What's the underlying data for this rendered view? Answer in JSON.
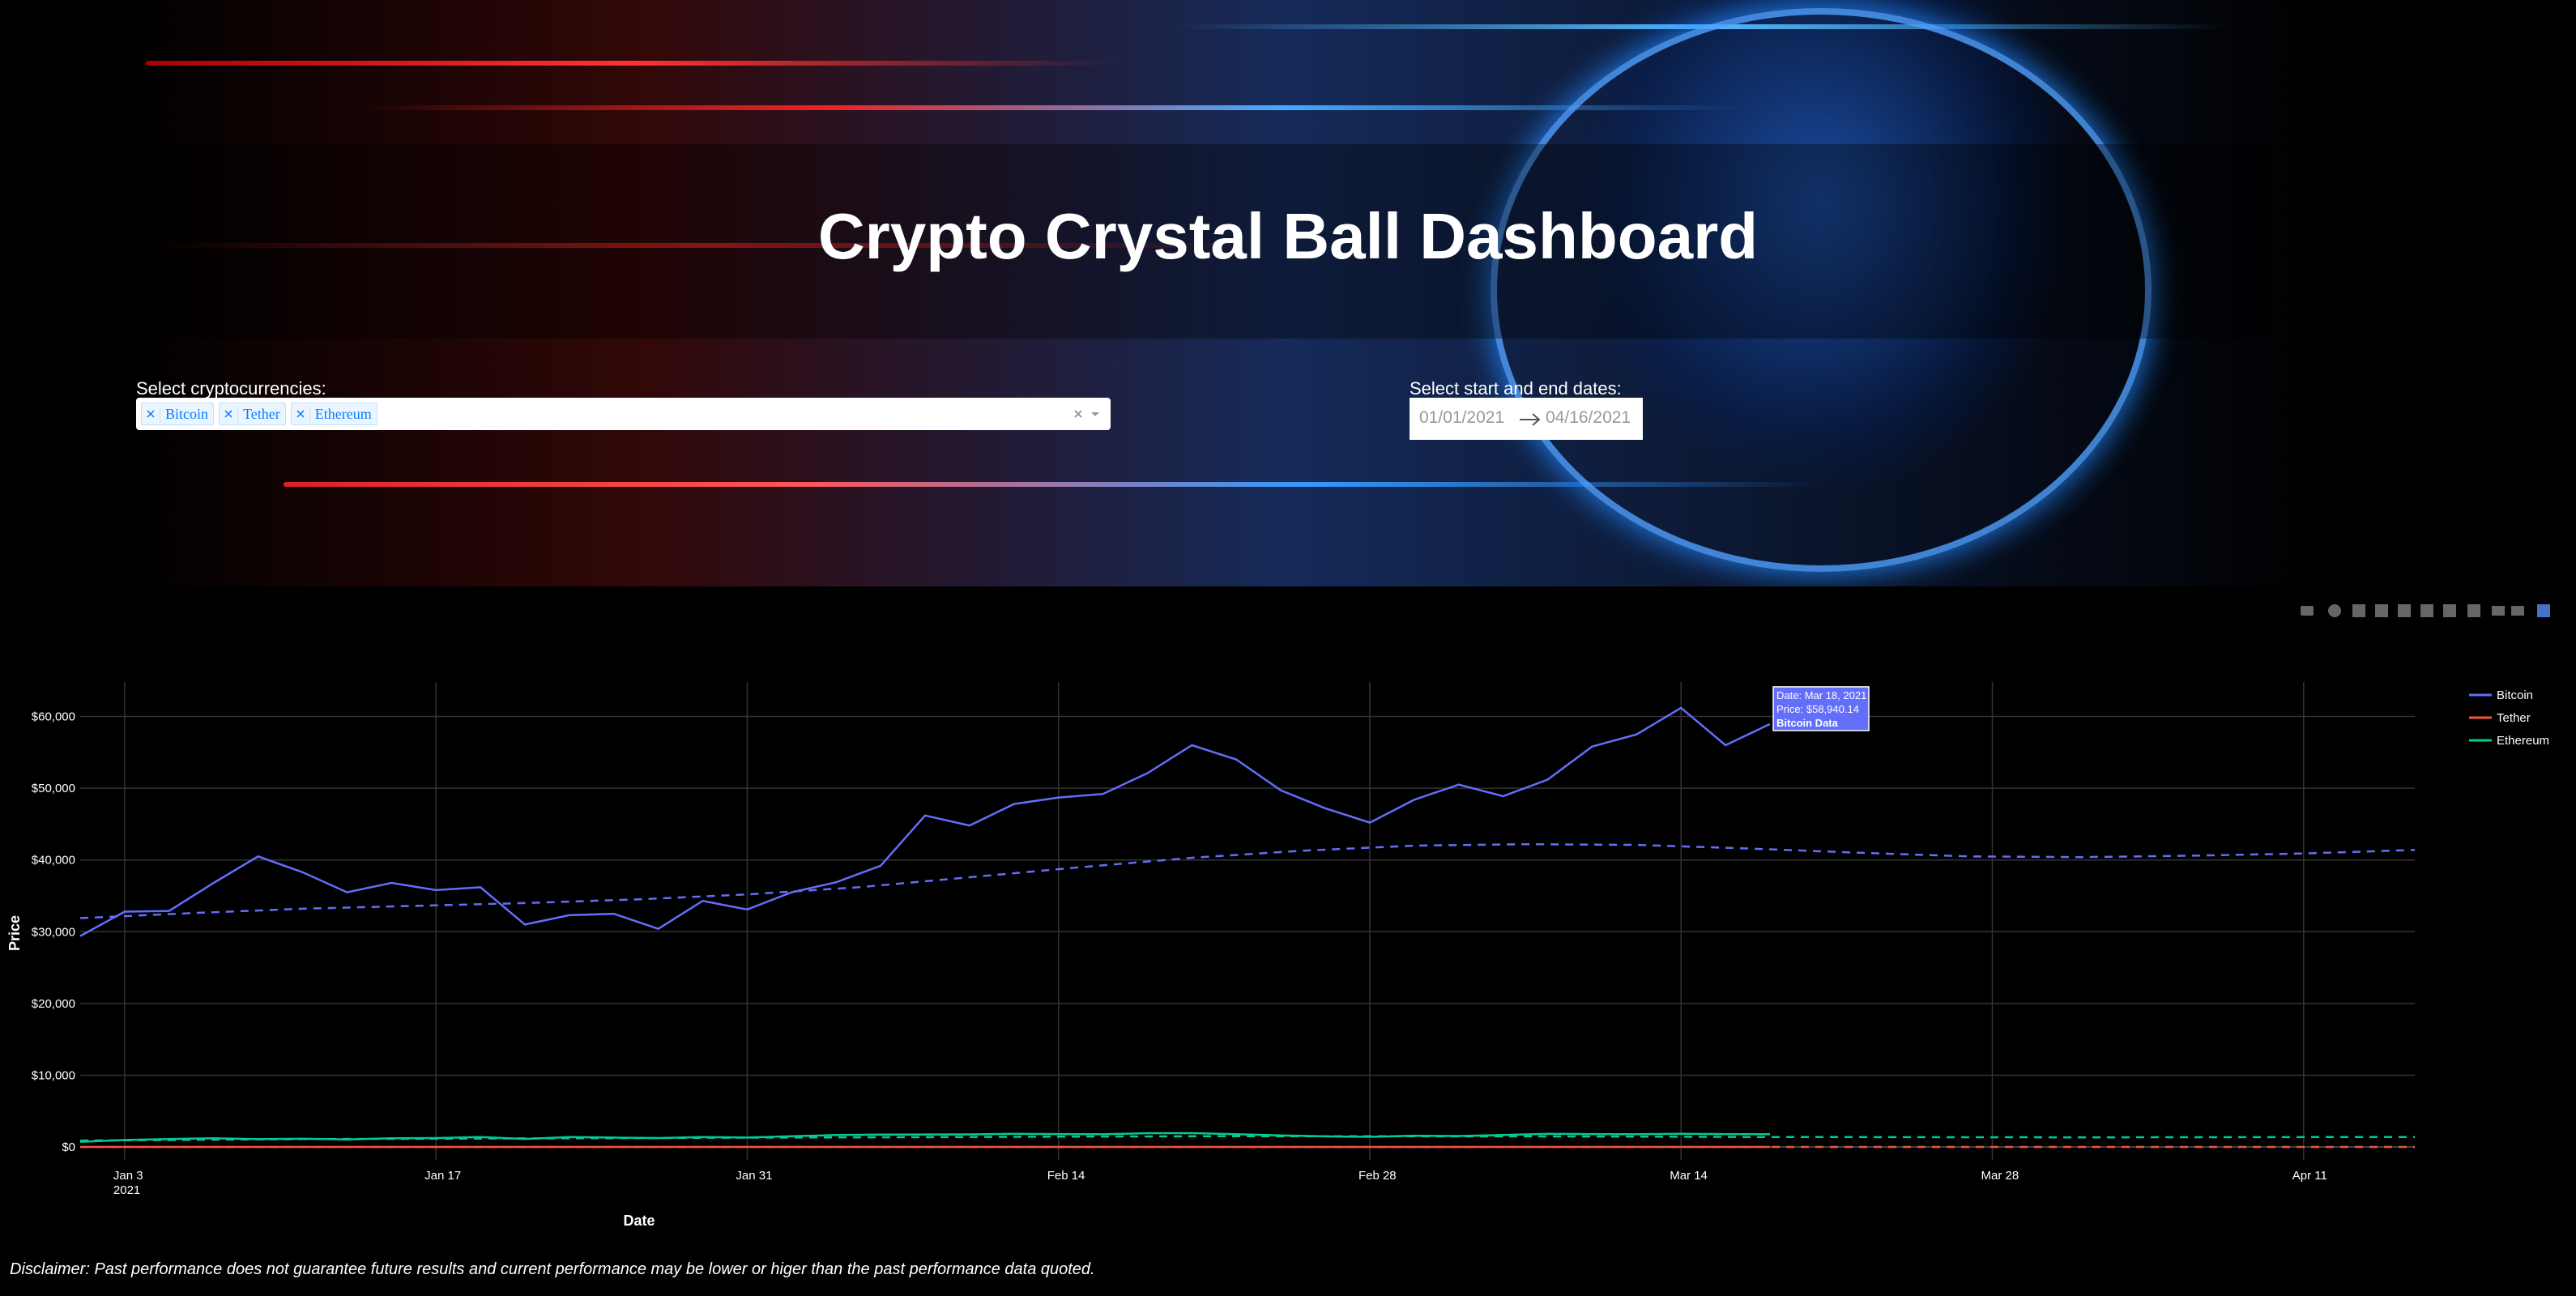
{
  "header": {
    "title": "Crypto Crystal Ball Dashboard"
  },
  "controls": {
    "crypto_label": "Select cryptocurrencies:",
    "selected": [
      "Bitcoin",
      "Tether",
      "Ethereum"
    ],
    "date_label": "Select start and end dates:",
    "start_date": "01/01/2021",
    "end_date": "04/16/2021"
  },
  "chart_data": {
    "type": "line",
    "x_label": "Date",
    "y_label": "Price",
    "grid": true,
    "legend": "right",
    "xlim": [
      "2021-01-01",
      "2021-04-16"
    ],
    "xticks": [
      {
        "value": "2021-01-03",
        "label": "Jan 3",
        "sublabel": "2021"
      },
      {
        "value": "2021-01-17",
        "label": "Jan 17"
      },
      {
        "value": "2021-01-31",
        "label": "Jan 31"
      },
      {
        "value": "2021-02-14",
        "label": "Feb 14"
      },
      {
        "value": "2021-02-28",
        "label": "Feb 28"
      },
      {
        "value": "2021-03-14",
        "label": "Mar 14"
      },
      {
        "value": "2021-03-28",
        "label": "Mar 28"
      },
      {
        "value": "2021-04-11",
        "label": "Apr 11"
      }
    ],
    "ylim": [
      -1800,
      64800
    ],
    "yticks": [
      {
        "value": 0,
        "label": "$0"
      },
      {
        "value": 10000,
        "label": "$10,000"
      },
      {
        "value": 20000,
        "label": "$20,000"
      },
      {
        "value": 30000,
        "label": "$30,000"
      },
      {
        "value": 40000,
        "label": "$40,000"
      },
      {
        "value": 50000,
        "label": "$50,000"
      },
      {
        "value": 60000,
        "label": "$60,000"
      }
    ],
    "x": [
      "2021-01-01",
      "2021-01-03",
      "2021-01-05",
      "2021-01-07",
      "2021-01-09",
      "2021-01-11",
      "2021-01-13",
      "2021-01-15",
      "2021-01-17",
      "2021-01-19",
      "2021-01-21",
      "2021-01-23",
      "2021-01-25",
      "2021-01-27",
      "2021-01-29",
      "2021-01-31",
      "2021-02-02",
      "2021-02-04",
      "2021-02-06",
      "2021-02-08",
      "2021-02-10",
      "2021-02-12",
      "2021-02-14",
      "2021-02-16",
      "2021-02-18",
      "2021-02-20",
      "2021-02-22",
      "2021-02-24",
      "2021-02-26",
      "2021-02-28",
      "2021-03-02",
      "2021-03-04",
      "2021-03-06",
      "2021-03-08",
      "2021-03-10",
      "2021-03-12",
      "2021-03-14",
      "2021-03-16",
      "2021-03-18"
    ],
    "forecast_x": [
      "2021-01-01",
      "2021-01-06",
      "2021-01-11",
      "2021-01-16",
      "2021-01-21",
      "2021-01-26",
      "2021-01-31",
      "2021-02-05",
      "2021-02-10",
      "2021-02-15",
      "2021-02-20",
      "2021-02-25",
      "2021-03-02",
      "2021-03-07",
      "2021-03-12",
      "2021-03-17",
      "2021-03-22",
      "2021-03-27",
      "2021-04-01",
      "2021-04-06",
      "2021-04-11",
      "2021-04-16"
    ],
    "series": [
      {
        "name": "Bitcoin",
        "color": "#636efa",
        "values": [
          29400,
          32800,
          32900,
          36800,
          40500,
          38300,
          35500,
          36800,
          35800,
          36200,
          31000,
          32300,
          32500,
          30400,
          34300,
          33100,
          35500,
          36900,
          39200,
          46200,
          44800,
          47800,
          48700,
          49200,
          52100,
          56000,
          54000,
          49700,
          47200,
          45200,
          48400,
          50500,
          48900,
          51200,
          55800,
          57500,
          61200,
          56000,
          58940.14
        ],
        "forecast": [
          31900,
          32600,
          33200,
          33600,
          34000,
          34500,
          35200,
          36200,
          37600,
          39000,
          40300,
          41300,
          42000,
          42200,
          42100,
          41600,
          41000,
          40500,
          40400,
          40600,
          40900,
          41400
        ]
      },
      {
        "name": "Tether",
        "color": "#ef553b",
        "values": [
          1,
          1,
          1,
          1,
          1,
          1,
          1,
          1,
          1,
          1,
          1,
          1,
          1,
          1,
          1,
          1,
          1,
          1,
          1,
          1,
          1,
          1,
          1,
          1,
          1,
          1,
          1,
          1,
          1,
          1,
          1,
          1,
          1,
          1,
          1,
          1,
          1,
          1,
          1
        ],
        "forecast": [
          1,
          1,
          1,
          1,
          1,
          1,
          1,
          1,
          1,
          1,
          1,
          1,
          1,
          1,
          1,
          1,
          1,
          1,
          1,
          1,
          1,
          1
        ]
      },
      {
        "name": "Ethereum",
        "color": "#00cc96",
        "values": [
          730,
          980,
          1100,
          1220,
          1090,
          1150,
          1050,
          1230,
          1250,
          1380,
          1120,
          1390,
          1320,
          1250,
          1380,
          1310,
          1500,
          1660,
          1720,
          1740,
          1760,
          1840,
          1800,
          1780,
          1920,
          1940,
          1780,
          1620,
          1480,
          1420,
          1570,
          1530,
          1670,
          1830,
          1800,
          1790,
          1850,
          1800,
          1790
        ],
        "forecast": [
          900,
          1000,
          1100,
          1150,
          1200,
          1250,
          1300,
          1350,
          1400,
          1450,
          1500,
          1500,
          1500,
          1480,
          1450,
          1400,
          1380,
          1360,
          1350,
          1360,
          1380,
          1400
        ]
      }
    ],
    "tooltip": [
      "Date: Mar 18, 2021",
      "Price: $58,940.14",
      "Bitcoin Data"
    ]
  },
  "footer": {
    "disclaimer": "Disclaimer: Past performance does not guarantee future results and current performance may be lower or higer than the past performance data quoted."
  }
}
